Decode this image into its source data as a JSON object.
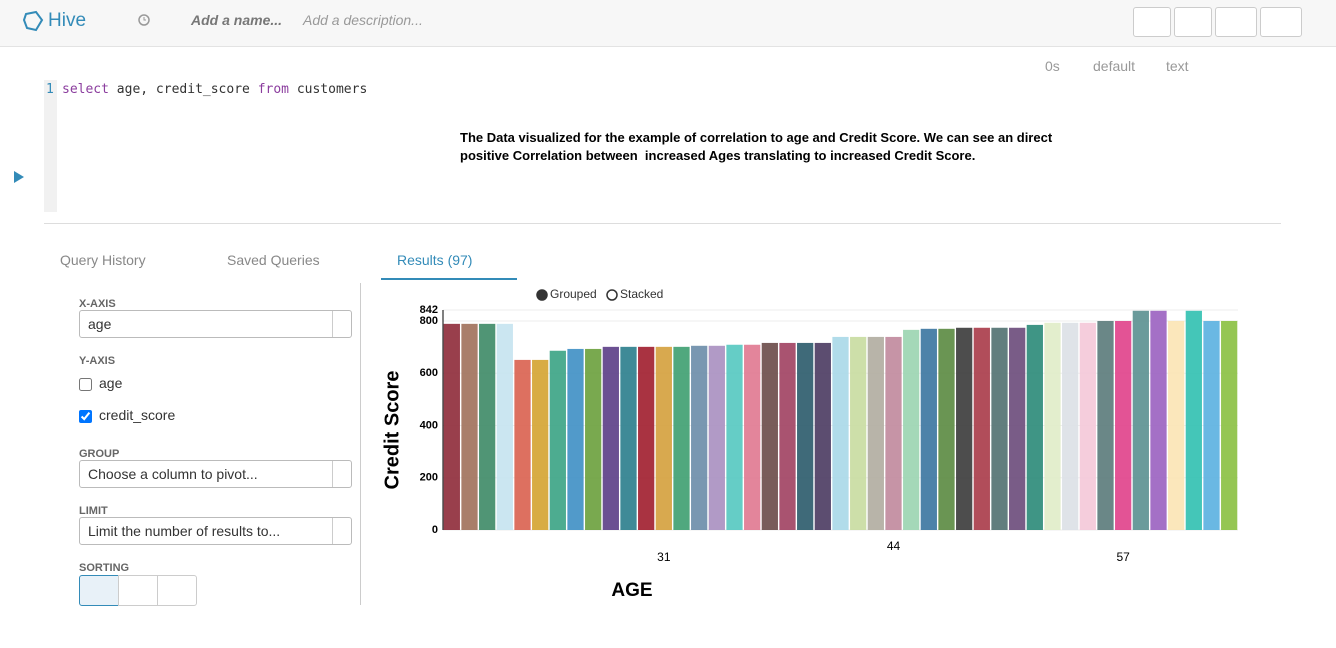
{
  "header": {
    "app": "Hive",
    "name_placeholder": "Add a name...",
    "description_placeholder": "Add a description..."
  },
  "editor": {
    "timer": "0s",
    "database": "default",
    "format": "text",
    "line_number": "1",
    "query_tokens": [
      "select",
      "age, credit_score",
      "from",
      "customers"
    ]
  },
  "annotation": [
    "The Data visualized for the example of correlation to age and Credit Score. We can see an direct",
    "positive Correlation between  increased Ages translating to increased Credit Score."
  ],
  "tabs": [
    "Query History",
    "Saved Queries",
    "Results (97)"
  ],
  "settings": {
    "x_axis_label": "X-AXIS",
    "x_axis_value": "age",
    "y_axis_label": "Y-AXIS",
    "y_options": [
      {
        "name": "age",
        "checked": false
      },
      {
        "name": "credit_score",
        "checked": true
      }
    ],
    "group_label": "GROUP",
    "group_placeholder": "Choose a column to pivot...",
    "limit_label": "LIMIT",
    "limit_placeholder": "Limit the number of results to...",
    "sorting_label": "SORTING"
  },
  "chart_data": {
    "type": "bar",
    "legend": [
      "Grouped",
      "Stacked"
    ],
    "xlabel": "AGE",
    "ylabel": "Credit Score",
    "categories": [
      null,
      null,
      null,
      null,
      null,
      null,
      null,
      null,
      null,
      null,
      null,
      null,
      "31",
      null,
      null,
      null,
      null,
      null,
      null,
      null,
      null,
      null,
      null,
      null,
      null,
      "44",
      null,
      null,
      null,
      null,
      null,
      null,
      null,
      null,
      null,
      null,
      null,
      null,
      "57",
      null,
      null,
      null,
      null,
      null,
      null
    ],
    "values": [
      789,
      789,
      789,
      789,
      651,
      651,
      686,
      693,
      693,
      701,
      701,
      701,
      701,
      701,
      705,
      705,
      709,
      709,
      716,
      716,
      716,
      716,
      739,
      739,
      739,
      739,
      766,
      770,
      770,
      774,
      774,
      774,
      774,
      785,
      793,
      793,
      793,
      800,
      800,
      839,
      839,
      800,
      839,
      800,
      800
    ],
    "colors": [
      "#8e2a38",
      "#a0705a",
      "#3d8a66",
      "#c5e3f0",
      "#d9604f",
      "#d4a330",
      "#3aa384",
      "#3e8fc4",
      "#6aa03c",
      "#5b3d86",
      "#2a7d8c",
      "#a01d2c",
      "#d4a03c",
      "#3d9e70",
      "#6a8ca8",
      "#a98fc0",
      "#54c8c0",
      "#e07890",
      "#6a4a48",
      "#a04060",
      "#2a5a6a",
      "#4a3a60",
      "#a8d8e8",
      "#c8dca0",
      "#b0aca0",
      "#c0889c",
      "#9ad4b0",
      "#3a74a0",
      "#5a8a40",
      "#3a3a3a",
      "#a83a48",
      "#507070",
      "#6a4a7a",
      "#2a8a78",
      "#e0ecc8",
      "#dce0e6",
      "#f4c8d8",
      "#5a7a7a",
      "#e0408a",
      "#5a9090",
      "#9a60c0",
      "#fbe4b4",
      "#30c0b0",
      "#5ab0e0",
      "#8ac040"
    ],
    "ylim": [
      0,
      842
    ],
    "yticks": [
      0,
      200,
      400,
      600,
      800,
      842
    ],
    "grid": true
  }
}
